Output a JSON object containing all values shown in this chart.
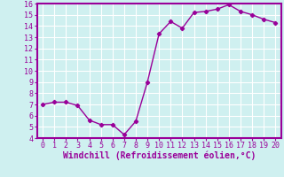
{
  "x": [
    0,
    1,
    2,
    3,
    4,
    5,
    6,
    7,
    8,
    9,
    10,
    11,
    12,
    13,
    14,
    15,
    16,
    17,
    18,
    19,
    20
  ],
  "y": [
    7.0,
    7.2,
    7.2,
    6.9,
    5.6,
    5.2,
    5.2,
    4.3,
    5.5,
    9.0,
    13.3,
    14.4,
    13.8,
    15.2,
    15.3,
    15.5,
    15.9,
    15.3,
    15.0,
    14.6,
    14.3
  ],
  "line_color": "#990099",
  "marker": "D",
  "marker_size": 2.2,
  "bg_color": "#cff0f0",
  "grid_color": "#ffffff",
  "tick_color": "#990099",
  "label_color": "#990099",
  "xlabel": "Windchill (Refroidissement éolien,°C)",
  "ylabel": "",
  "xlim": [
    -0.5,
    20.5
  ],
  "ylim": [
    4,
    16
  ],
  "yticks": [
    4,
    5,
    6,
    7,
    8,
    9,
    10,
    11,
    12,
    13,
    14,
    15,
    16
  ],
  "xticks": [
    0,
    1,
    2,
    3,
    4,
    5,
    6,
    7,
    8,
    9,
    10,
    11,
    12,
    13,
    14,
    15,
    16,
    17,
    18,
    19,
    20
  ],
  "xlabel_fontsize": 7.0,
  "tick_fontsize": 6.0,
  "line_width": 1.0,
  "spine_color": "#990099",
  "spine_linewidth": 1.5
}
